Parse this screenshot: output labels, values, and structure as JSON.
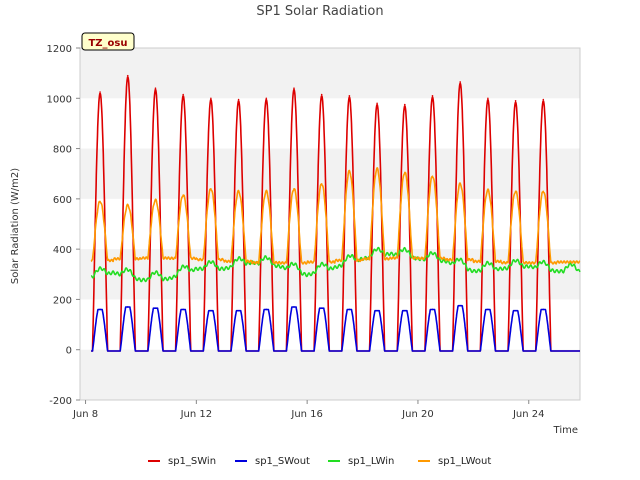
{
  "chart_data": {
    "type": "line",
    "title": "SP1 Solar Radiation",
    "xlabel": "Time",
    "ylabel": "Solar Radiation (W/m2)",
    "badge": "TZ_osu",
    "ylim": [
      -200,
      1200
    ],
    "xlim_days": [
      7.8,
      25.85
    ],
    "yticks": [
      -200,
      0,
      200,
      400,
      600,
      800,
      1000,
      1200
    ],
    "xticks": [
      {
        "day": 8,
        "label": "Jun 8"
      },
      {
        "day": 12,
        "label": "Jun 12"
      },
      {
        "day": 16,
        "label": "Jun 16"
      },
      {
        "day": 20,
        "label": "Jun 20"
      },
      {
        "day": 24,
        "label": "Jun 24"
      }
    ],
    "grid": "horizontal-bands",
    "legend_position": "bottom",
    "days": [
      "Jun 8",
      "Jun 9",
      "Jun 10",
      "Jun 11",
      "Jun 12",
      "Jun 13",
      "Jun 14",
      "Jun 15",
      "Jun 16",
      "Jun 17",
      "Jun 18",
      "Jun 19",
      "Jun 20",
      "Jun 21",
      "Jun 22",
      "Jun 23",
      "Jun 24",
      "Jun 25"
    ],
    "series": [
      {
        "name": "sp1_SWin",
        "color": "#dd0000",
        "stat": "daily_peak",
        "values": [
          1025,
          1090,
          1040,
          1015,
          1000,
          995,
          1000,
          1040,
          1015,
          1010,
          980,
          975,
          1010,
          1065,
          1000,
          990,
          995,
          null
        ]
      },
      {
        "name": "sp1_SWout",
        "color": "#0000dd",
        "stat": "daily_peak",
        "values": [
          160,
          170,
          165,
          160,
          155,
          155,
          160,
          170,
          165,
          160,
          155,
          155,
          160,
          175,
          160,
          155,
          160,
          null
        ]
      },
      {
        "name": "sp1_LWin",
        "color": "#22dd22",
        "stat": "daily_mean",
        "values": [
          290,
          315,
          285,
          290,
          330,
          330,
          355,
          340,
          305,
          335,
          370,
          390,
          370,
          360,
          320,
          330,
          340,
          320
        ]
      },
      {
        "name": "sp1_LWout",
        "color": "#ff9900",
        "stat": "daily_peak",
        "values": [
          590,
          575,
          595,
          615,
          640,
          630,
          630,
          640,
          660,
          710,
          720,
          705,
          690,
          660,
          635,
          630,
          630,
          null
        ]
      }
    ]
  }
}
